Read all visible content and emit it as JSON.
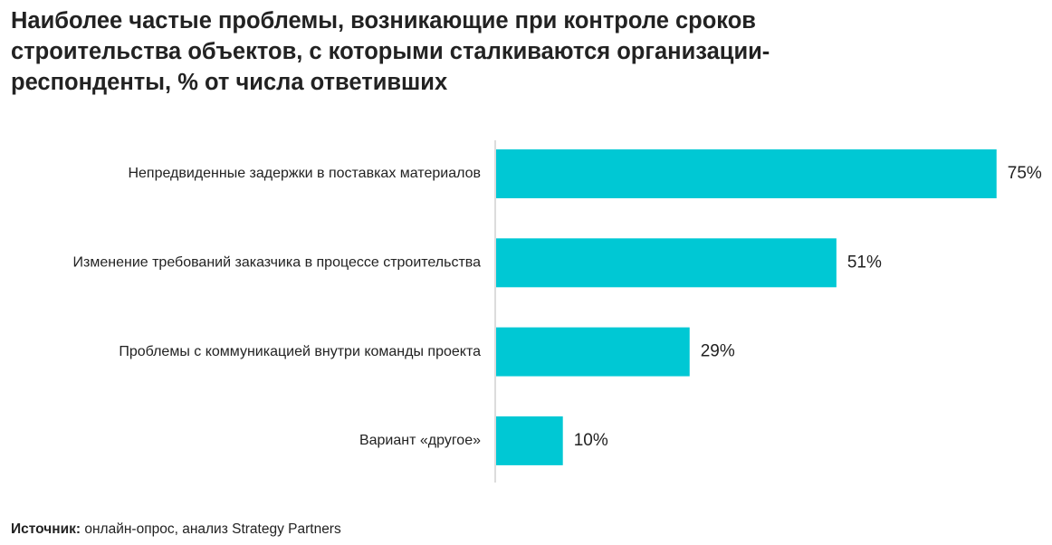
{
  "title": "Наиболее частые проблемы, возникающие при контроле сроков строительства объектов, с которыми сталкиваются организации-респонденты, % от числа ответивших",
  "source": {
    "label": "Источник:",
    "text": " онлайн-опрос, анализ Strategy Partners"
  },
  "colors": {
    "bar": "#00c8d4",
    "axis": "#d0d0d0"
  },
  "chart_data": {
    "type": "bar",
    "orientation": "horizontal",
    "categories": [
      "Непредвиденные задержки в поставках материалов",
      "Изменение требований заказчика в процессе строительства",
      "Проблемы с коммуникацией внутри команды проекта",
      "Вариант «другое»"
    ],
    "values": [
      75,
      51,
      29,
      10
    ],
    "value_labels": [
      "75%",
      "51%",
      "29%",
      "10%"
    ],
    "unit": "%",
    "xlim": [
      0,
      100
    ],
    "grid": false
  }
}
